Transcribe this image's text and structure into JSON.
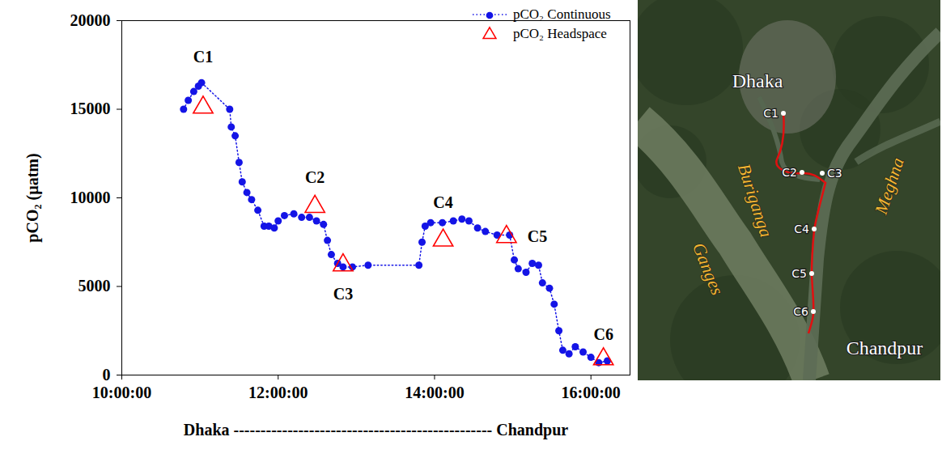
{
  "chart_data": {
    "type": "line",
    "x_label": "Dhaka ------------------------------------------------ Chandpur",
    "y_label": "pCO₂ (µatm)",
    "xlim": [
      10,
      16.5
    ],
    "xticks": [
      {
        "value": 10,
        "label": "10:00:00"
      },
      {
        "value": 12,
        "label": "12:00:00"
      },
      {
        "value": 14,
        "label": "14:00:00"
      },
      {
        "value": 16,
        "label": "16:00:00"
      }
    ],
    "ylim": [
      0,
      20000
    ],
    "yticks": [
      0,
      5000,
      10000,
      15000,
      20000
    ],
    "legend": "top-right",
    "series": [
      {
        "name": "pCO₂ Continuous",
        "color": "#1414e6",
        "type": "line",
        "marker": "circle",
        "line_style": "dotted",
        "x": [
          10.79,
          10.85,
          10.92,
          10.98,
          11.02,
          11.38,
          11.4,
          11.45,
          11.5,
          11.54,
          11.6,
          11.66,
          11.74,
          11.82,
          11.88,
          11.95,
          12.0,
          12.08,
          12.2,
          12.3,
          12.4,
          12.49,
          12.58,
          12.63,
          12.68,
          12.76,
          12.83,
          12.95,
          13.15,
          13.8,
          13.84,
          13.88,
          13.95,
          14.1,
          14.24,
          14.35,
          14.44,
          14.55,
          14.65,
          14.8,
          14.96,
          15.02,
          15.07,
          15.17,
          15.25,
          15.33,
          15.38,
          15.47,
          15.53,
          15.59,
          15.64,
          15.72,
          15.8,
          15.9,
          16.0,
          16.1,
          16.21
        ],
        "values": [
          15000,
          15500,
          16000,
          16300,
          16500,
          15000,
          14000,
          13500,
          12000,
          10900,
          10300,
          9900,
          9300,
          8400,
          8400,
          8300,
          8700,
          9000,
          9100,
          8900,
          8900,
          8700,
          8500,
          7600,
          6800,
          6300,
          6100,
          6100,
          6200,
          6200,
          7500,
          8400,
          8600,
          8600,
          8700,
          8800,
          8700,
          8300,
          8100,
          7900,
          7900,
          6500,
          6000,
          5800,
          6300,
          6200,
          5200,
          4900,
          4000,
          2500,
          1400,
          1200,
          1600,
          1300,
          1000,
          700,
          800
        ]
      },
      {
        "name": "pCO₂ Headspace",
        "color": "#ff0000",
        "type": "scatter",
        "marker": "triangle",
        "x": [
          11.04,
          12.47,
          12.83,
          14.11,
          14.92,
          16.16
        ],
        "values": [
          15100,
          9500,
          6200,
          7600,
          7800,
          900
        ],
        "point_labels": [
          "C1",
          "C2",
          "C3",
          "C4",
          "C5",
          "C6"
        ]
      }
    ]
  },
  "map": {
    "place_labels": [
      "Dhaka",
      "Chandpur"
    ],
    "river_labels": [
      "Buriganga",
      "Meghna",
      "Ganges"
    ],
    "sites": [
      "C1",
      "C2",
      "C3",
      "C4",
      "C5",
      "C6"
    ]
  }
}
